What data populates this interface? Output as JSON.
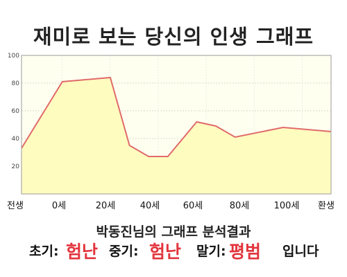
{
  "title": "재미로 보는 당신의 인생 그래프",
  "chart_data": {
    "type": "area",
    "x_tick_labels": [
      "전생",
      "0세",
      "20세",
      "40세",
      "60세",
      "80세",
      "100세",
      "환생"
    ],
    "y_ticks": [
      20,
      40,
      60,
      80,
      100
    ],
    "ylim": [
      0,
      100
    ],
    "x": [
      -17,
      0,
      20,
      28,
      36,
      44,
      56,
      64,
      72,
      92,
      112
    ],
    "values": [
      33,
      81,
      84,
      35,
      27,
      27,
      52,
      49,
      41,
      48,
      45
    ],
    "line_color": "#e06a6a",
    "fill_color": "#fffcc0",
    "plot_bg": "#fffff0",
    "grid": true
  },
  "result": {
    "title": "박동진님의 그래프 분석결과",
    "early_label": "초기:",
    "early_value": "험난",
    "mid_label": "중기:",
    "mid_value": "험난",
    "late_label": "말기:",
    "late_value": "평범",
    "suffix": "입니다",
    "accent_color": "#e2343c"
  }
}
